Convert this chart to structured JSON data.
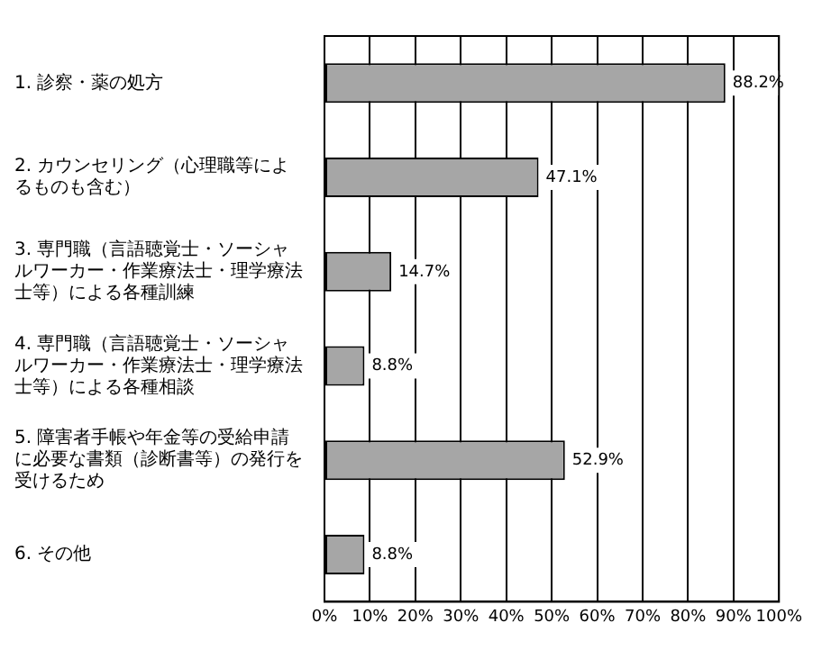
{
  "chart_data": {
    "type": "bar",
    "orientation": "horizontal",
    "categories": [
      "1. 診察・薬の処方",
      "2. カウンセリング（心理職等によるものも含む）",
      "3. 専門職（言語聴覚士・ソーシャルワーカー・作業療法士・理学療法士等）による各種訓練",
      "4. 専門職（言語聴覚士・ソーシャルワーカー・作業療法士・理学療法士等）による各種相談",
      "5. 障害者手帳や年金等の受給申請に必要な書類（診断書等）の発行を受けるため",
      "6. その他"
    ],
    "values": [
      88.2,
      47.1,
      14.7,
      8.8,
      52.9,
      8.8
    ],
    "value_labels": [
      "88.2%",
      "47.1%",
      "14.7%",
      "8.8%",
      "52.9%",
      "8.8%"
    ],
    "color": "#a6a6a6",
    "xlim": [
      0,
      100
    ],
    "xticks": [
      {
        "value": 0,
        "label": "0%"
      },
      {
        "value": 10,
        "label": "10%"
      },
      {
        "value": 20,
        "label": "20%"
      },
      {
        "value": 30,
        "label": "30%"
      },
      {
        "value": 40,
        "label": "40%"
      },
      {
        "value": 50,
        "label": "50%"
      },
      {
        "value": 60,
        "label": "60%"
      },
      {
        "value": 70,
        "label": "70%"
      },
      {
        "value": 80,
        "label": "80%"
      },
      {
        "value": 90,
        "label": "90%"
      },
      {
        "value": 100,
        "label": "100%"
      }
    ],
    "grid": "x",
    "legend": false
  }
}
